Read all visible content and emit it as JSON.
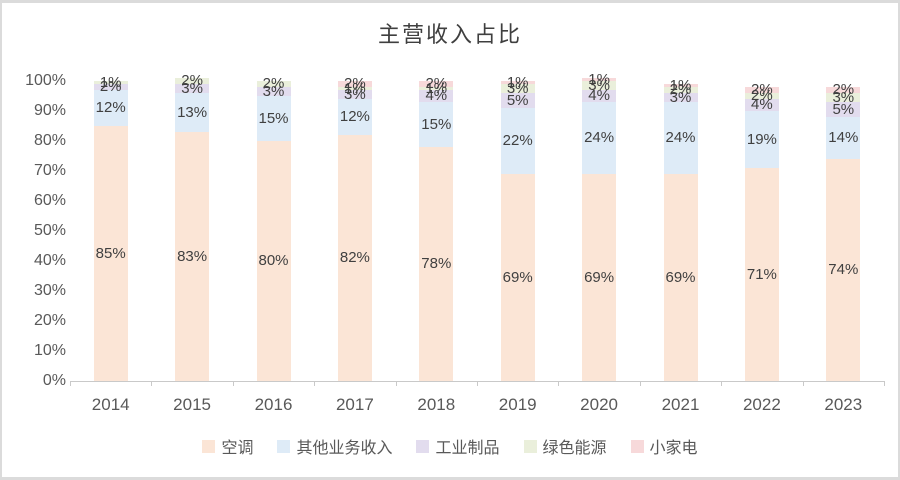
{
  "chart_data": {
    "type": "bar",
    "stacked": true,
    "title": "主营收入占比",
    "categories": [
      "2014",
      "2015",
      "2016",
      "2017",
      "2018",
      "2019",
      "2020",
      "2021",
      "2022",
      "2023"
    ],
    "series": [
      {
        "name": "空调",
        "color": "#FBE5D6",
        "values": [
          85,
          83,
          80,
          82,
          78,
          69,
          69,
          69,
          71,
          74
        ]
      },
      {
        "name": "其他业务收入",
        "color": "#DEEBF7",
        "values": [
          12,
          13,
          15,
          12,
          15,
          22,
          24,
          24,
          19,
          14
        ]
      },
      {
        "name": "工业制品",
        "color": "#E2DCEE",
        "values": [
          2,
          3,
          3,
          3,
          4,
          5,
          4,
          3,
          4,
          5
        ]
      },
      {
        "name": "绿色能源",
        "color": "#EAEFDB",
        "values": [
          1,
          2,
          2,
          1,
          1,
          3,
          3,
          2,
          2,
          3
        ]
      },
      {
        "name": "小家电",
        "color": "#F7D9DA",
        "values": [
          0,
          0,
          0,
          2,
          2,
          1,
          1,
          1,
          2,
          2
        ]
      }
    ],
    "y_ticks": [
      "0%",
      "10%",
      "20%",
      "30%",
      "40%",
      "50%",
      "60%",
      "70%",
      "80%",
      "90%",
      "100%"
    ],
    "ylim": [
      0,
      100
    ],
    "grid": false,
    "data_label_suffix": "%",
    "legend_position": "bottom",
    "axis_color": "#c9c9c9",
    "axis_text_color": "#595959",
    "data_label_color": "#404040"
  }
}
